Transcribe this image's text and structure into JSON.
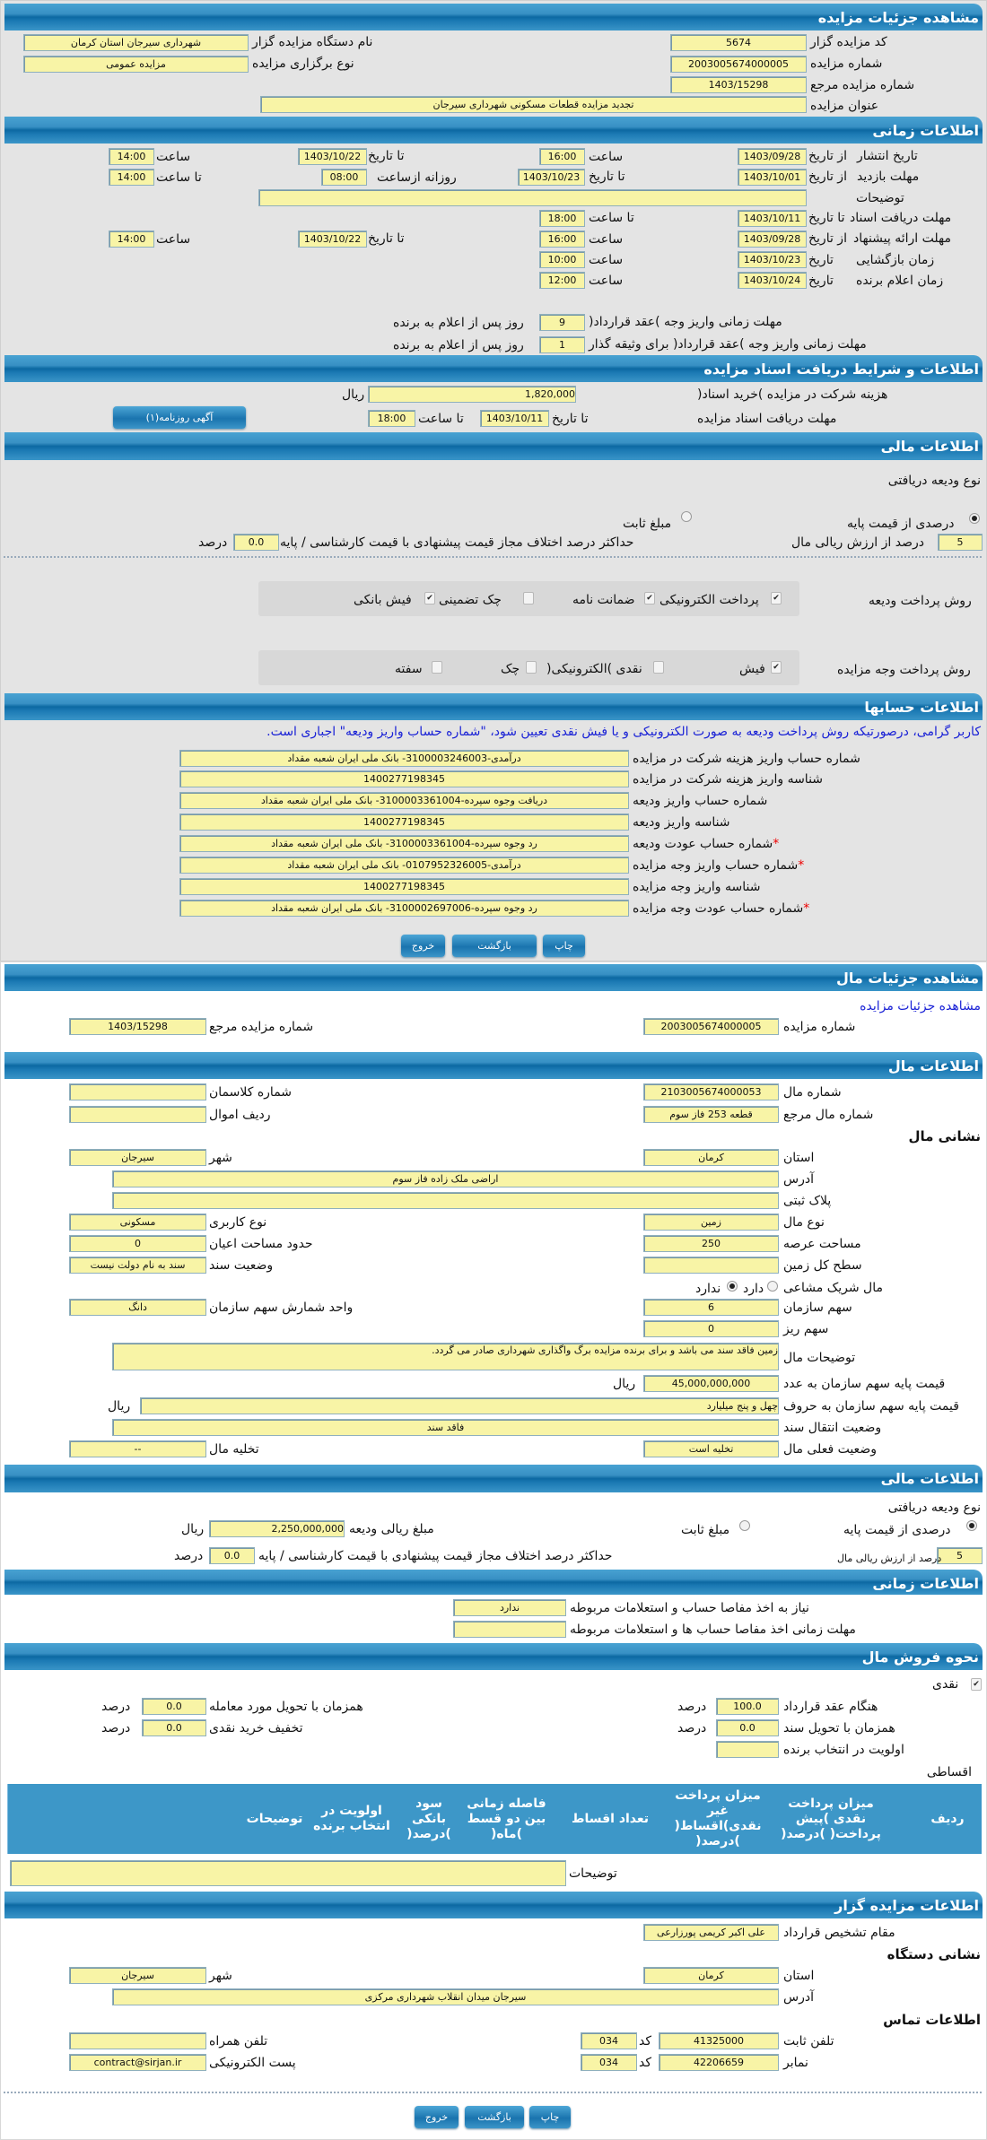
{
  "auction": {
    "title": "مشاهده جزئیات مزایده",
    "code_label": "کد مزایده گزار",
    "code": "5674",
    "number_label": "شماره مزایده",
    "number": "2003005674000005",
    "ref_label": "شماره مزایده مرجع",
    "ref": "1403/15298",
    "subject_label": "عنوان مزایده",
    "subject": "تجدید مزایده قطعات مسکونی شهرداری سیرجان",
    "org_label": "نام دستگاه مزایده گزار",
    "org": "شهرداری سیرجان استان کرمان",
    "type_label": "نوع برگزاری مزایده",
    "type": "مزایده عمومی"
  },
  "timing": {
    "title": "اطلاعات زمانی",
    "publish": {
      "label": "تاریخ انتشار",
      "from_label": "از تاریخ",
      "from": "1403/09/28",
      "time_label": "ساعت",
      "time": "16:00",
      "to_label": "تا تاریخ",
      "to": "1403/10/22",
      "time2_label": "ساعت",
      "time2": "14:00"
    },
    "visit": {
      "label": "مهلت بازدید",
      "from_label": "از تاریخ",
      "from": "1403/10/01",
      "to_label": "تا تاریخ",
      "to": "1403/10/23",
      "daily_label": "روزانه ازساعت",
      "daily_from": "08:00",
      "until_label": "تا ساعت",
      "until": "14:00"
    },
    "notes_label": "توضیحات",
    "notes": "",
    "docs": {
      "label": "مهلت دریافت اسناد",
      "to_label": "تا تاریخ",
      "to": "1403/10/11",
      "time_label": "تا ساعت",
      "time": "18:00"
    },
    "offer": {
      "label": "مهلت ارائه پیشنهاد",
      "from_label": "از تاریخ",
      "from": "1403/09/28",
      "time_label": "ساعت",
      "time": "16:00",
      "to_label": "تا تاریخ",
      "to": "1403/10/22",
      "time2_label": "ساعت",
      "time2": "14:00"
    },
    "opening": {
      "label": "زمان بازگشایی",
      "date_label": "تاریخ",
      "date": "1403/10/23",
      "time_label": "ساعت",
      "time": "10:00"
    },
    "winner": {
      "label": "زمان اعلام برنده",
      "date_label": "تاریخ",
      "date": "1403/10/24",
      "time_label": "ساعت",
      "time": "12:00"
    },
    "pay_contract_label": "مهلت زمانی واریز وجه )عقد قرارداد(",
    "pay_contract": "9",
    "days_after_label": "روز پس از اعلام به برنده",
    "pay_guarantor_label": "مهلت زمانی واریز وجه )عقد قرارداد( برای وثیقه گذار",
    "pay_guarantor": "1",
    "days_after_label2": "روز پس از اعلام به برنده"
  },
  "docs": {
    "title": "اطلاعات و شرایط دریافت اسناد مزایده",
    "fee_label": "هزینه شرکت در مزایده )خرید اسناد(",
    "fee": "1,820,000",
    "currency": "ریال",
    "deadline_label": "مهلت دریافت اسناد مزایده",
    "to_label": "تا تاریخ",
    "to": "1403/10/11",
    "time_label": "تا ساعت",
    "time": "18:00",
    "ad_button": "آگهی روزنامه(۱)"
  },
  "finance": {
    "title": "اطلاعات مالی",
    "deposit_type_label": "نوع ودیعه دریافتی",
    "opt_percent": "درصدی از قیمت پایه",
    "opt_fixed": "مبلغ ثابت",
    "percent": "5",
    "percent_label": "درصد از ارزش ریالی مال",
    "max_diff_label": "حداکثر درصد اختلاف مجاز قیمت پیشنهادی با قیمت کارشناسی / پایه",
    "max_diff": "0.0",
    "pct_unit": "درصد",
    "deposit_methods_label": "روش پرداخت ودیعه",
    "deposit_methods": [
      {
        "label": "پرداخت الکترونیکی",
        "checked": true
      },
      {
        "label": "ضمانت نامه",
        "checked": true
      },
      {
        "label": "چک تضمینی",
        "checked": false
      },
      {
        "label": "فیش بانکی",
        "checked": true
      }
    ],
    "payment_methods_label": "روش پرداخت وجه مزایده",
    "payment_methods": [
      {
        "label": "فیش",
        "checked": true
      },
      {
        "label": "نقدی )الکترونیکی(",
        "checked": false
      },
      {
        "label": "چک",
        "checked": false
      },
      {
        "label": "سفته",
        "checked": false
      }
    ]
  },
  "accounts": {
    "title": "اطلاعات حسابها",
    "note": "کاربر گرامی، درصورتیکه روش پرداخت ودیعه به صورت الکترونیکی و یا فیش نقدی تعیین شود، \"شماره حساب واریز ودیعه\" اجباری است.",
    "rows": [
      {
        "label": "شماره حساب واریز هزینه شرکت در مزایده",
        "value": "درآمدی-3100003246003- بانک ملی ایران شعبه مقداد",
        "required": false
      },
      {
        "label": "شناسه واریز هزینه شرکت در مزایده",
        "value": "1400277198345",
        "required": false
      },
      {
        "label": "شماره حساب واریز ودیعه",
        "value": "دریافت وجوه سپرده-3100003361004- بانک ملی ایران شعبه مقداد",
        "required": false
      },
      {
        "label": "شناسه واریز ودیعه",
        "value": "1400277198345",
        "required": false
      },
      {
        "label": "شماره حساب عودت ودیعه",
        "value": "رد وجوه سپرده-3100003361004- بانک ملی ایران شعبه مقداد",
        "required": true
      },
      {
        "label": "شماره حساب واریز وجه مزایده",
        "value": "درآمدی-0107952326005- بانک ملی ایران شعبه مقداد",
        "required": true
      },
      {
        "label": "شناسه واریز وجه مزایده",
        "value": "1400277198345",
        "required": false
      },
      {
        "label": "شماره حساب عودت وجه مزایده",
        "value": "رد وجوه سپرده-3100002697006- بانک ملی ایران شعبه مقداد",
        "required": true
      }
    ],
    "required_mark": "*"
  },
  "buttons": {
    "print": "چاپ",
    "back": "بازگشت",
    "exit": "خروج"
  },
  "item": {
    "title": "مشاهده جزئیات مال",
    "auction_link": "مشاهده جزئیات مزایده",
    "auction_number_label": "شماره مزایده",
    "auction_number": "2003005674000005",
    "ref_label": "شماره مزایده مرجع",
    "ref": "1403/15298"
  },
  "item_info": {
    "title": "اطلاعات مال",
    "number_label": "شماره مال",
    "number": "2103005674000053",
    "classman_label": "شماره کلاسمان",
    "classman": "",
    "ref_label": "شماره مال مرجع",
    "ref": "قطعه 253 فاز سوم",
    "row_label": "ردیف اموال",
    "row": "",
    "address_heading": "نشانی مال",
    "province_label": "استان",
    "province": "کرمان",
    "city_label": "شهر",
    "city": "سیرجان",
    "address_label": "آدرس",
    "address": "اراضی ملک زاده فاز سوم",
    "plate_label": "پلاک ثبتی",
    "plate": "",
    "kind_label": "نوع مال",
    "kind": "زمین",
    "usage_label": "نوع کاربری",
    "usage": "مسکونی",
    "area_label": "مساحت عرصه",
    "area": "250",
    "building_label": "حدود مساحت اعیان",
    "building": "0",
    "land_label": "سطح کل زمین",
    "land": "",
    "deed_label": "وضعیت سند",
    "deed": "سند به نام دولت نیست",
    "shared_label": "مال شریک مشاعی",
    "shared_yes": "دارد",
    "shared_no": "ندارد",
    "shared": "ندارد",
    "org_share_label": "سهم سازمان",
    "org_share": "6",
    "share_unit_label": "واحد شمارش سهم سازمان",
    "share_unit": "دانگ",
    "sub_share_label": "سهم ریز",
    "sub_share": "0",
    "desc_label": "توضیحات مال",
    "desc": "زمین فاقد سند می باشد و برای برنده مزایده برگ واگذاری شهرداری صادر می گردد.",
    "price_num_label": "قیمت پایه سهم سازمان به عدد",
    "price_num": "45,000,000,000",
    "price_words_label": "قیمت پایه سهم سازمان به حروف",
    "price_words": "چهل و پنج میلیارد",
    "currency": "ریال",
    "transfer_label": "وضعیت انتقال سند",
    "transfer": "فاقد سند",
    "status_label": "وضعیت فعلی مال",
    "status": "تخلیه است",
    "evac_label": "تخلیه مال",
    "evac": "--"
  },
  "item_finance": {
    "title": "اطلاعات مالی",
    "deposit_type_label": "نوع ودیعه دریافتی",
    "opt_percent": "درصدی از قیمت پایه",
    "opt_fixed": "مبلغ ثابت",
    "deposit_amount_label": "مبلغ ریالی ودیعه",
    "deposit_amount": "2,250,000,000",
    "currency": "ریال",
    "percent": "5",
    "percent_label": "درصد از ارزش ریالی مال",
    "max_diff_label": "حداکثر درصد اختلاف مجاز قیمت پیشنهادی با قیمت کارشناسی / پایه",
    "max_diff": "0.0",
    "pct_unit": "درصد"
  },
  "item_timing": {
    "title": "اطلاعات زمانی",
    "clearance_label": "نیاز به اخذ مفاصا حساب و استعلامات مربوطه",
    "clearance": "ندارد",
    "clearance_deadline_label": "مهلت زمانی اخذ مفاصا حساب ها و استعلامات مربوطه",
    "clearance_deadline": ""
  },
  "sale": {
    "title": "نحوه فروش مال",
    "cash_label": "نقدی",
    "cash_checked": true,
    "contract_label": "هنگام عقد قرارداد",
    "contract": "100.0",
    "deed_delivery_label": "همزمان با تحویل سند",
    "deed_delivery": "0.0",
    "priority_label": "اولویت در انتخاب برنده",
    "priority": "",
    "item_delivery_label": "همزمان با تحویل مورد معامله",
    "item_delivery": "0.0",
    "discount_label": "تخفیف خرید نقدی",
    "discount": "0.0",
    "pct_unit": "درصد",
    "installments_label": "اقساطی",
    "columns": [
      "ردیف",
      "",
      "میزان پرداخت نقدی )پیش پرداخت( )درصد(",
      "میزان پرداخت غیر نقدی)اقساط( )درصد(",
      "تعداد اقساط",
      "فاصله زمانی بین دو قسط )ماه(",
      "سود بانکی )درصد(",
      "اولویت در انتخاب برنده",
      "توضیحات",
      ""
    ],
    "notes_label": "توضیحات",
    "notes": ""
  },
  "seller": {
    "title": "اطلاعات مزایده گزار",
    "authority_label": "مقام تشخیص قرارداد",
    "authority": "علی اکبر کریمی پورزارعی",
    "address_heading": "نشانی دستگاه",
    "province_label": "استان",
    "province": "کرمان",
    "city_label": "شهر",
    "city": "سیرجان",
    "address_label": "آدرس",
    "address": "سیرجان میدان انقلاب شهرداری مرکزی",
    "contact_heading": "اطلاعات تماس",
    "phone_label": "تلفن ثابت",
    "phone": "41325000",
    "code_label": "کد",
    "phone_code": "034",
    "fax_label": "نمابر",
    "fax": "42206659",
    "fax_code": "034",
    "mobile_label": "تلفن همراه",
    "mobile": "",
    "email_label": "پست الکترونیکی",
    "email": "contract@sirjan.ir"
  }
}
